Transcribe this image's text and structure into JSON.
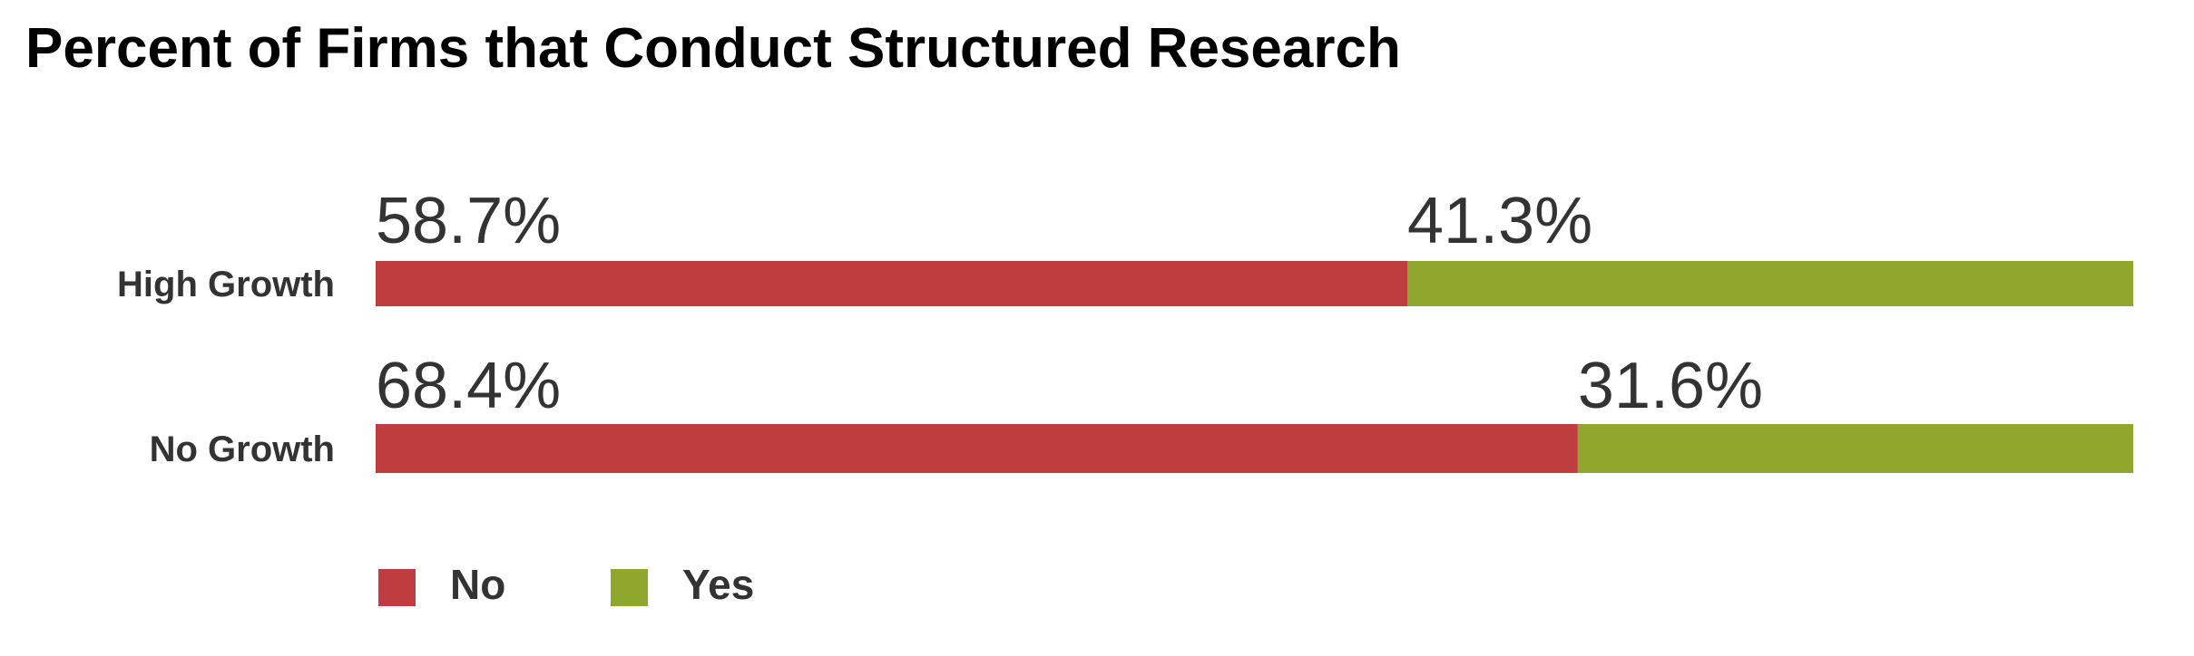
{
  "chart_data": {
    "type": "stacked_bar",
    "orientation": "horizontal",
    "title": "Percent of Firms that Conduct Structured Research",
    "categories": [
      "High Growth",
      "No Growth"
    ],
    "series": [
      {
        "name": "No",
        "color": "#bf3d3f",
        "values": [
          58.7,
          68.4
        ],
        "value_labels": [
          "58.7%",
          "68.4%"
        ]
      },
      {
        "name": "Yes",
        "color": "#8fa72c",
        "values": [
          41.3,
          31.6
        ],
        "value_labels": [
          "41.3%",
          "31.6%"
        ]
      }
    ],
    "xlim": [
      0,
      100
    ]
  }
}
